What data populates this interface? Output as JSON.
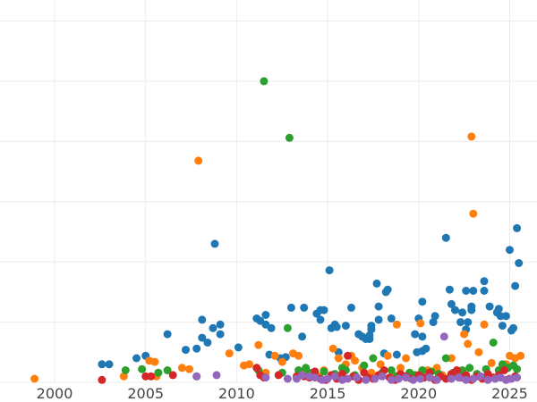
{
  "chart_data": {
    "type": "scatter",
    "title": "",
    "xlabel": "",
    "ylabel": "",
    "grid": true,
    "legend": "none",
    "xlim": [
      1997.0,
      2026.5
    ],
    "ylim": [
      0,
      310
    ],
    "xticks": [
      2000,
      2005,
      2010,
      2015,
      2020,
      2025
    ],
    "xtick_labels": [
      "2000",
      "2005",
      "2010",
      "2015",
      "2020",
      "2025"
    ],
    "ytick_grid": [
      0,
      50,
      100,
      150,
      200,
      250,
      300
    ],
    "series": [
      {
        "color": "#1f77b4",
        "points": [
          [
            2002.6,
            15
          ],
          [
            2003.0,
            15
          ],
          [
            2005.0,
            22
          ],
          [
            2004.5,
            20
          ],
          [
            2006.2,
            40
          ],
          [
            2007.2,
            27
          ],
          [
            2007.8,
            28
          ],
          [
            2008.1,
            52
          ],
          [
            2008.1,
            37
          ],
          [
            2008.4,
            33
          ],
          [
            2008.7,
            45
          ],
          [
            2008.8,
            115
          ],
          [
            2009.1,
            48
          ],
          [
            2009.1,
            40
          ],
          [
            2010.1,
            29
          ],
          [
            2011.1,
            53
          ],
          [
            2011.3,
            51
          ],
          [
            2011.6,
            48
          ],
          [
            2011.6,
            56
          ],
          [
            2011.9,
            45
          ],
          [
            2011.8,
            23
          ],
          [
            2012.4,
            20
          ],
          [
            2012.7,
            21
          ],
          [
            2013.0,
            62
          ],
          [
            2013.6,
            38
          ],
          [
            2013.7,
            62
          ],
          [
            2014.4,
            57
          ],
          [
            2014.6,
            60
          ],
          [
            2014.8,
            60
          ],
          [
            2014.6,
            52
          ],
          [
            2015.1,
            93
          ],
          [
            2015.2,
            45
          ],
          [
            2015.4,
            48
          ],
          [
            2015.5,
            46
          ],
          [
            2015.6,
            25
          ],
          [
            2016.0,
            47
          ],
          [
            2016.3,
            62
          ],
          [
            2016.7,
            40
          ],
          [
            2016.9,
            38
          ],
          [
            2017.1,
            36
          ],
          [
            2017.3,
            39
          ],
          [
            2017.3,
            36
          ],
          [
            2017.4,
            47
          ],
          [
            2017.4,
            44
          ],
          [
            2017.7,
            82
          ],
          [
            2017.8,
            63
          ],
          [
            2017.8,
            52
          ],
          [
            2018.1,
            24
          ],
          [
            2018.2,
            75
          ],
          [
            2018.3,
            77
          ],
          [
            2018.5,
            53
          ],
          [
            2018.8,
            23
          ],
          [
            2019.8,
            40
          ],
          [
            2019.9,
            25
          ],
          [
            2020.0,
            53
          ],
          [
            2020.2,
            67
          ],
          [
            2020.2,
            38
          ],
          [
            2020.2,
            26
          ],
          [
            2020.4,
            28
          ],
          [
            2020.8,
            50
          ],
          [
            2020.9,
            55
          ],
          [
            2021.5,
            120
          ],
          [
            2021.7,
            77
          ],
          [
            2021.8,
            65
          ],
          [
            2022.0,
            60
          ],
          [
            2022.3,
            50
          ],
          [
            2022.4,
            58
          ],
          [
            2022.6,
            44
          ],
          [
            2022.6,
            76
          ],
          [
            2022.7,
            50
          ],
          [
            2022.9,
            60
          ],
          [
            2022.9,
            63
          ],
          [
            2023.0,
            76
          ],
          [
            2023.6,
            84
          ],
          [
            2023.6,
            76
          ],
          [
            2023.9,
            63
          ],
          [
            2024.3,
            58
          ],
          [
            2024.4,
            61
          ],
          [
            2024.5,
            55
          ],
          [
            2024.6,
            47
          ],
          [
            2024.8,
            55
          ],
          [
            2025.0,
            110
          ],
          [
            2025.1,
            43
          ],
          [
            2025.2,
            45
          ],
          [
            2025.3,
            80
          ],
          [
            2025.4,
            128
          ],
          [
            2025.5,
            99
          ]
        ]
      },
      {
        "color": "#ff7f0e",
        "points": [
          [
            1998.9,
            3
          ],
          [
            2003.8,
            5
          ],
          [
            2005.2,
            18
          ],
          [
            2005.5,
            17
          ],
          [
            2005.6,
            5
          ],
          [
            2007.0,
            12
          ],
          [
            2007.4,
            11
          ],
          [
            2007.9,
            184
          ],
          [
            2009.6,
            24
          ],
          [
            2010.4,
            14
          ],
          [
            2010.7,
            15
          ],
          [
            2011.2,
            31
          ],
          [
            2011.6,
            8
          ],
          [
            2012.1,
            22
          ],
          [
            2012.5,
            17
          ],
          [
            2013.1,
            24
          ],
          [
            2013.4,
            22
          ],
          [
            2013.8,
            10
          ],
          [
            2014.2,
            8
          ],
          [
            2014.5,
            5
          ],
          [
            2014.8,
            10
          ],
          [
            2015.3,
            28
          ],
          [
            2015.6,
            20
          ],
          [
            2016.0,
            15
          ],
          [
            2016.3,
            22
          ],
          [
            2016.5,
            18
          ],
          [
            2016.9,
            12
          ],
          [
            2017.4,
            8
          ],
          [
            2017.9,
            15
          ],
          [
            2018.3,
            22
          ],
          [
            2018.6,
            6
          ],
          [
            2018.8,
            48
          ],
          [
            2019.0,
            12
          ],
          [
            2019.3,
            20
          ],
          [
            2019.5,
            8
          ],
          [
            2020.1,
            49
          ],
          [
            2020.5,
            10
          ],
          [
            2021.0,
            12
          ],
          [
            2021.3,
            6
          ],
          [
            2021.8,
            20
          ],
          [
            2022.3,
            9
          ],
          [
            2022.5,
            40
          ],
          [
            2022.7,
            32
          ],
          [
            2022.9,
            204
          ],
          [
            2023.0,
            140
          ],
          [
            2023.3,
            25
          ],
          [
            2023.6,
            48
          ],
          [
            2024.0,
            16
          ],
          [
            2024.4,
            10
          ],
          [
            2024.8,
            15
          ],
          [
            2025.0,
            22
          ],
          [
            2025.3,
            20
          ],
          [
            2025.6,
            22
          ]
        ]
      },
      {
        "color": "#2ca02c",
        "points": [
          [
            2003.9,
            10
          ],
          [
            2004.8,
            11
          ],
          [
            2005.7,
            8
          ],
          [
            2006.2,
            10
          ],
          [
            2007.8,
            5
          ],
          [
            2011.2,
            10
          ],
          [
            2011.5,
            250
          ],
          [
            2012.5,
            8
          ],
          [
            2012.8,
            45
          ],
          [
            2012.9,
            203
          ],
          [
            2013.4,
            10
          ],
          [
            2013.8,
            12
          ],
          [
            2014.0,
            8
          ],
          [
            2014.3,
            5
          ],
          [
            2014.8,
            9
          ],
          [
            2015.4,
            7
          ],
          [
            2015.8,
            12
          ],
          [
            2016.0,
            10
          ],
          [
            2016.5,
            6
          ],
          [
            2017.0,
            14
          ],
          [
            2017.5,
            20
          ],
          [
            2018.0,
            8
          ],
          [
            2018.5,
            10
          ],
          [
            2018.8,
            5
          ],
          [
            2019.5,
            8
          ],
          [
            2019.8,
            6
          ],
          [
            2020.2,
            10
          ],
          [
            2020.7,
            9
          ],
          [
            2021.1,
            7
          ],
          [
            2021.5,
            20
          ],
          [
            2021.9,
            8
          ],
          [
            2022.4,
            10
          ],
          [
            2022.8,
            12
          ],
          [
            2023.2,
            7
          ],
          [
            2023.7,
            11
          ],
          [
            2024.1,
            33
          ],
          [
            2024.4,
            10
          ],
          [
            2024.6,
            15
          ],
          [
            2024.9,
            12
          ],
          [
            2025.2,
            14
          ],
          [
            2025.4,
            11
          ]
        ]
      },
      {
        "color": "#d62728",
        "points": [
          [
            2002.6,
            2
          ],
          [
            2005.0,
            5
          ],
          [
            2005.3,
            5
          ],
          [
            2006.5,
            6
          ],
          [
            2011.1,
            12
          ],
          [
            2011.3,
            6
          ],
          [
            2011.5,
            4
          ],
          [
            2012.3,
            6
          ],
          [
            2013.3,
            5
          ],
          [
            2013.7,
            5
          ],
          [
            2014.0,
            4
          ],
          [
            2014.3,
            9
          ],
          [
            2014.6,
            3
          ],
          [
            2014.9,
            2
          ],
          [
            2015.2,
            6
          ],
          [
            2015.5,
            3
          ],
          [
            2015.8,
            7
          ],
          [
            2016.1,
            22
          ],
          [
            2016.4,
            5
          ],
          [
            2016.7,
            2
          ],
          [
            2017.0,
            8
          ],
          [
            2017.2,
            4
          ],
          [
            2017.5,
            3
          ],
          [
            2017.8,
            6
          ],
          [
            2018.1,
            10
          ],
          [
            2018.4,
            4
          ],
          [
            2018.7,
            2
          ],
          [
            2019.0,
            7
          ],
          [
            2019.3,
            5
          ],
          [
            2019.6,
            3
          ],
          [
            2020.0,
            6
          ],
          [
            2020.3,
            4
          ],
          [
            2020.6,
            8
          ],
          [
            2020.9,
            2
          ],
          [
            2021.2,
            5
          ],
          [
            2021.5,
            3
          ],
          [
            2021.8,
            7
          ],
          [
            2022.1,
            10
          ],
          [
            2022.3,
            4
          ],
          [
            2022.6,
            6
          ],
          [
            2022.9,
            2
          ],
          [
            2023.2,
            5
          ],
          [
            2023.5,
            3
          ],
          [
            2023.8,
            7
          ],
          [
            2024.1,
            4
          ],
          [
            2024.4,
            6
          ],
          [
            2024.7,
            10
          ],
          [
            2025.0,
            3
          ],
          [
            2025.3,
            5
          ]
        ]
      },
      {
        "color": "#9467bd",
        "points": [
          [
            2007.8,
            5
          ],
          [
            2008.9,
            6
          ],
          [
            2011.6,
            4
          ],
          [
            2012.8,
            3
          ],
          [
            2013.3,
            3
          ],
          [
            2013.6,
            6
          ],
          [
            2014.0,
            5
          ],
          [
            2014.3,
            4
          ],
          [
            2014.7,
            2
          ],
          [
            2015.0,
            3
          ],
          [
            2015.4,
            5
          ],
          [
            2015.8,
            2
          ],
          [
            2016.1,
            3
          ],
          [
            2016.6,
            4
          ],
          [
            2017.1,
            2
          ],
          [
            2017.6,
            3
          ],
          [
            2018.0,
            5
          ],
          [
            2018.5,
            2
          ],
          [
            2018.9,
            3
          ],
          [
            2019.3,
            4
          ],
          [
            2019.7,
            2
          ],
          [
            2020.1,
            3
          ],
          [
            2020.6,
            4
          ],
          [
            2021.0,
            2
          ],
          [
            2021.4,
            38
          ],
          [
            2021.8,
            3
          ],
          [
            2022.2,
            4
          ],
          [
            2022.6,
            2
          ],
          [
            2023.0,
            3
          ],
          [
            2023.4,
            5
          ],
          [
            2023.8,
            2
          ],
          [
            2024.2,
            3
          ],
          [
            2024.5,
            4
          ],
          [
            2024.8,
            2
          ],
          [
            2025.1,
            3
          ],
          [
            2025.4,
            4
          ]
        ]
      }
    ]
  }
}
